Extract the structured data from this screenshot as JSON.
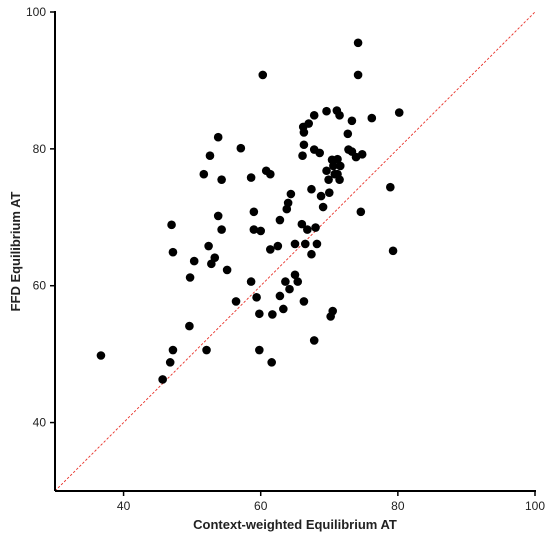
{
  "chart_data": {
    "type": "scatter",
    "xlabel": "Context-weighted Equilibrium AT",
    "ylabel": "FFD Equilibrium AT",
    "xlim": [
      30,
      100
    ],
    "ylim": [
      30,
      100
    ],
    "xticks": [
      "40",
      "60",
      "80",
      "100"
    ],
    "yticks": [
      "40",
      "60",
      "80",
      "100"
    ],
    "grid": false,
    "reference_line": {
      "type": "identity",
      "color": "#e8322a",
      "style": "dashed"
    },
    "point_color": "#000000",
    "series": [
      {
        "points": [
          [
            36.7,
            49.8
          ],
          [
            45.7,
            46.3
          ],
          [
            46.8,
            48.8
          ],
          [
            47.2,
            50.6
          ],
          [
            47.0,
            68.9
          ],
          [
            47.2,
            64.9
          ],
          [
            49.6,
            54.1
          ],
          [
            49.7,
            61.2
          ],
          [
            50.3,
            63.6
          ],
          [
            51.7,
            76.3
          ],
          [
            52.1,
            50.6
          ],
          [
            52.4,
            65.8
          ],
          [
            52.6,
            79.0
          ],
          [
            52.8,
            63.2
          ],
          [
            53.3,
            64.1
          ],
          [
            53.8,
            81.7
          ],
          [
            53.8,
            70.2
          ],
          [
            54.3,
            75.5
          ],
          [
            54.3,
            68.2
          ],
          [
            55.1,
            62.3
          ],
          [
            56.4,
            57.7
          ],
          [
            57.1,
            80.1
          ],
          [
            58.6,
            75.8
          ],
          [
            58.6,
            60.6
          ],
          [
            59.0,
            70.8
          ],
          [
            59.0,
            68.2
          ],
          [
            59.4,
            58.3
          ],
          [
            59.8,
            55.9
          ],
          [
            59.8,
            50.6
          ],
          [
            60.0,
            68.0
          ],
          [
            60.3,
            90.8
          ],
          [
            60.8,
            76.8
          ],
          [
            61.4,
            76.3
          ],
          [
            61.4,
            65.3
          ],
          [
            61.6,
            48.8
          ],
          [
            61.7,
            55.8
          ],
          [
            62.5,
            65.8
          ],
          [
            62.8,
            58.5
          ],
          [
            62.8,
            69.6
          ],
          [
            63.3,
            56.6
          ],
          [
            63.6,
            60.6
          ],
          [
            63.8,
            71.2
          ],
          [
            64.0,
            72.1
          ],
          [
            64.2,
            59.5
          ],
          [
            64.4,
            73.4
          ],
          [
            65.0,
            61.6
          ],
          [
            65.0,
            66.1
          ],
          [
            65.4,
            60.6
          ],
          [
            66.0,
            69.0
          ],
          [
            66.1,
            79.0
          ],
          [
            66.2,
            83.2
          ],
          [
            66.3,
            82.4
          ],
          [
            66.3,
            80.6
          ],
          [
            66.3,
            57.7
          ],
          [
            66.5,
            66.1
          ],
          [
            66.8,
            68.2
          ],
          [
            67.0,
            83.7
          ],
          [
            67.4,
            74.1
          ],
          [
            67.4,
            64.6
          ],
          [
            67.8,
            84.9
          ],
          [
            67.8,
            79.9
          ],
          [
            67.8,
            52.0
          ],
          [
            68.0,
            68.5
          ],
          [
            68.2,
            66.1
          ],
          [
            68.6,
            79.4
          ],
          [
            68.8,
            73.1
          ],
          [
            69.1,
            71.5
          ],
          [
            69.6,
            85.5
          ],
          [
            69.6,
            76.8
          ],
          [
            69.9,
            75.5
          ],
          [
            70.0,
            73.6
          ],
          [
            70.2,
            55.5
          ],
          [
            70.4,
            78.4
          ],
          [
            70.5,
            56.3
          ],
          [
            70.6,
            77.5
          ],
          [
            70.8,
            76.3
          ],
          [
            71.1,
            85.6
          ],
          [
            71.2,
            78.5
          ],
          [
            71.2,
            76.3
          ],
          [
            71.5,
            84.9
          ],
          [
            71.5,
            75.5
          ],
          [
            71.6,
            77.5
          ],
          [
            72.7,
            82.2
          ],
          [
            72.8,
            79.9
          ],
          [
            73.3,
            79.6
          ],
          [
            73.3,
            84.1
          ],
          [
            73.9,
            78.8
          ],
          [
            74.2,
            95.5
          ],
          [
            74.2,
            90.8
          ],
          [
            74.6,
            70.8
          ],
          [
            74.8,
            79.2
          ],
          [
            76.2,
            84.5
          ],
          [
            78.9,
            74.4
          ],
          [
            79.3,
            65.1
          ],
          [
            80.2,
            85.3
          ]
        ]
      }
    ]
  }
}
